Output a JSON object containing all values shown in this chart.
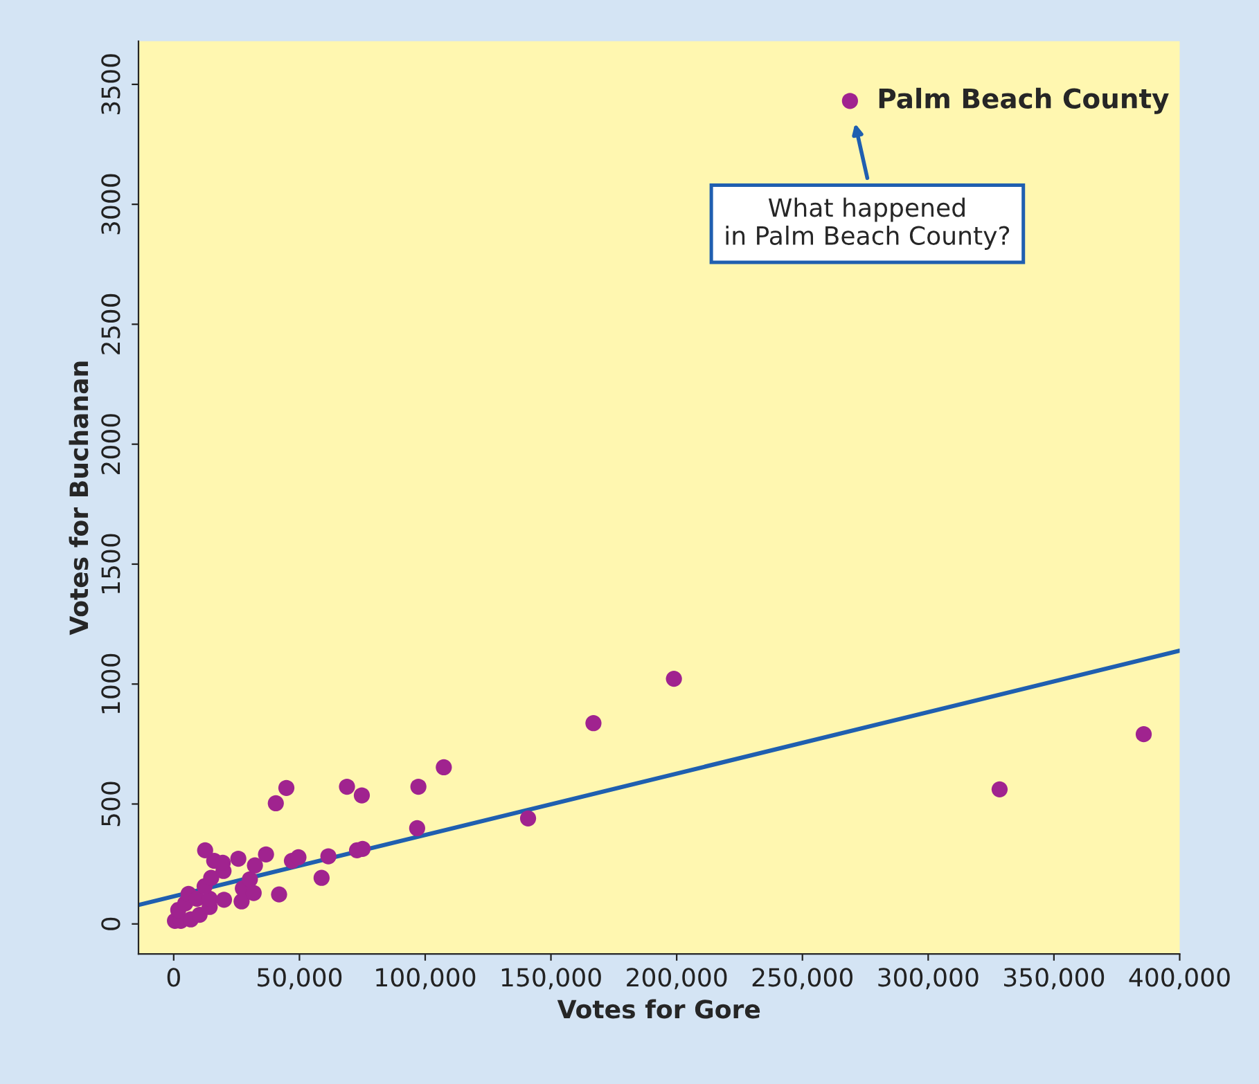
{
  "chart_data": {
    "type": "scatter",
    "xlabel": "Votes for Gore",
    "ylabel": "Votes for Buchanan",
    "xlim": [
      -14000,
      400000
    ],
    "ylim": [
      -125,
      3680
    ],
    "xticks": [
      {
        "value": 0,
        "label": "0"
      },
      {
        "value": 50000,
        "label": "50,000"
      },
      {
        "value": 100000,
        "label": "100,000"
      },
      {
        "value": 150000,
        "label": "150,000"
      },
      {
        "value": 200000,
        "label": "200,000"
      },
      {
        "value": 250000,
        "label": "250,000"
      },
      {
        "value": 300000,
        "label": "300,000"
      },
      {
        "value": 350000,
        "label": "350,000"
      },
      {
        "value": 400000,
        "label": "400,000"
      }
    ],
    "yticks": [
      0,
      500,
      1000,
      1500,
      2000,
      2500,
      3000,
      3500
    ],
    "grid": false,
    "legend": false,
    "series": [
      {
        "marker": "circle",
        "color": "#a0238f",
        "x": [
          500,
          2800,
          6800,
          10300,
          1800,
          4600,
          5900,
          9200,
          14300,
          14300,
          12300,
          14900,
          20000,
          27000,
          27500,
          31800,
          30300,
          19800,
          16100,
          19500,
          12500,
          25700,
          32300,
          36700,
          41900,
          40600,
          44800,
          47000,
          49600,
          58800,
          61500,
          68900,
          74800,
          72900,
          75100,
          96800,
          97300,
          107400,
          140900,
          166900,
          198900,
          328400,
          385700,
          268900
        ],
        "values": [
          13,
          13,
          19,
          38,
          58,
          86,
          125,
          105,
          71,
          105,
          157,
          192,
          101,
          94,
          148,
          129,
          186,
          221,
          263,
          255,
          307,
          272,
          244,
          290,
          123,
          503,
          567,
          263,
          278,
          192,
          282,
          572,
          536,
          307,
          313,
          399,
          572,
          653,
          440,
          837,
          1022,
          561,
          791,
          3431
        ]
      },
      {
        "type": "line",
        "color": "#1f5fb0",
        "x": [
          -14000,
          400000
        ],
        "values": [
          79,
          1139
        ]
      }
    ],
    "annotations": [
      {
        "text": "Palm Beach County",
        "x": 268900,
        "y": 3431
      },
      "What happened\nin Palm Beach County?"
    ]
  }
}
